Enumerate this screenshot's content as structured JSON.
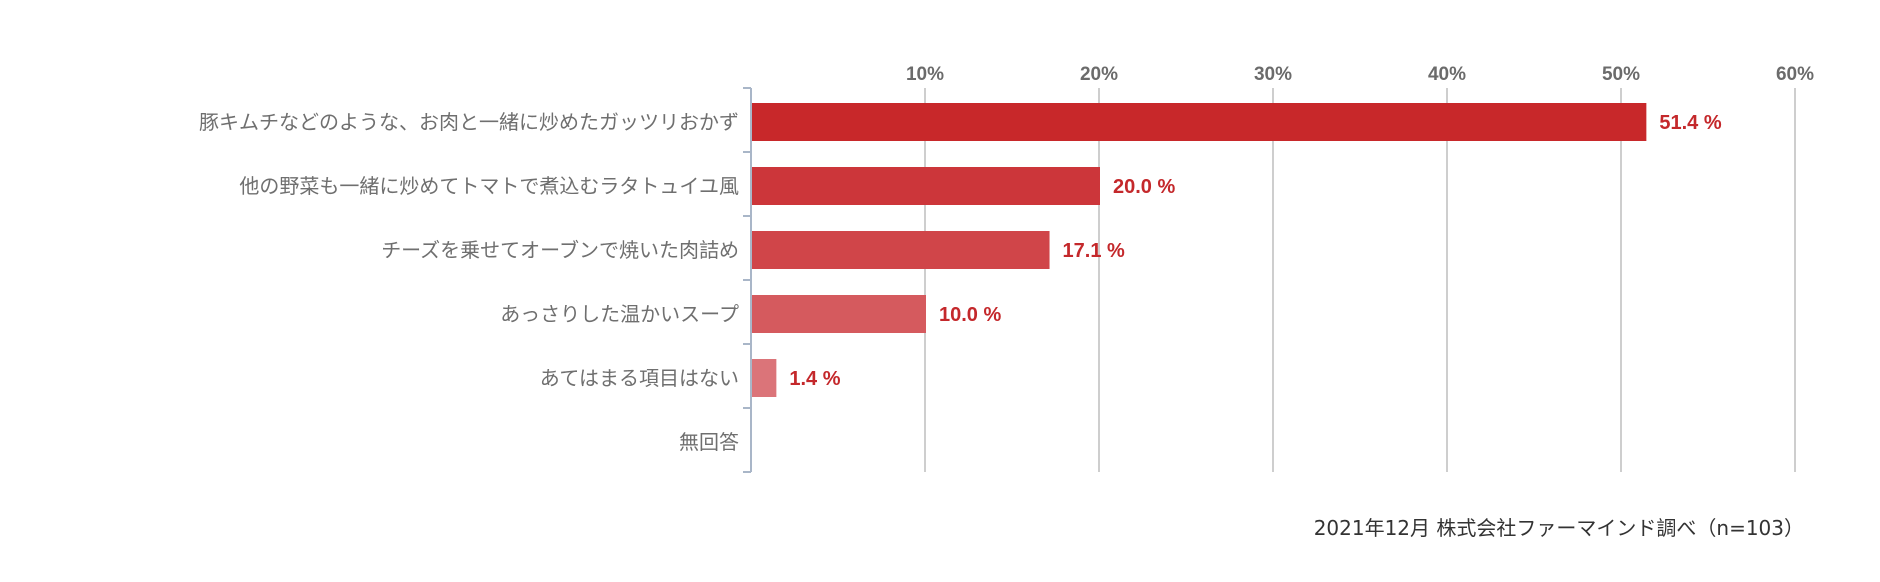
{
  "chart_data": {
    "type": "bar",
    "orientation": "horizontal",
    "categories": [
      "豚キムチなどのような、お肉と一緒に炒めたガッツリおかず",
      "他の野菜も一緒に炒めてトマトで煮込むラタトュイユ風",
      "チーズを乗せてオーブンで焼いた肉詰め",
      "あっさりした温かいスープ",
      "あてはまる項目はない",
      "無回答"
    ],
    "values": [
      51.4,
      20.0,
      17.1,
      10.0,
      1.4,
      null
    ],
    "value_labels": [
      "51.4 %",
      "20.0 %",
      "17.1 %",
      "10.0 %",
      "1.4 %",
      ""
    ],
    "xlim": [
      0,
      60
    ],
    "x_ticks": [
      10,
      20,
      30,
      40,
      50,
      60
    ],
    "x_tick_labels": [
      "10%",
      "20%",
      "30%",
      "40%",
      "50%",
      "60%"
    ],
    "grid": true,
    "bar_colors": [
      "#c8282a",
      "#cc363a",
      "#d04549",
      "#d55a5e",
      "#db7479",
      "#e08a8e"
    ],
    "label_color": "#c4282b"
  },
  "source_note": "2021年12月 株式会社ファーマインド調べ（n=103）"
}
